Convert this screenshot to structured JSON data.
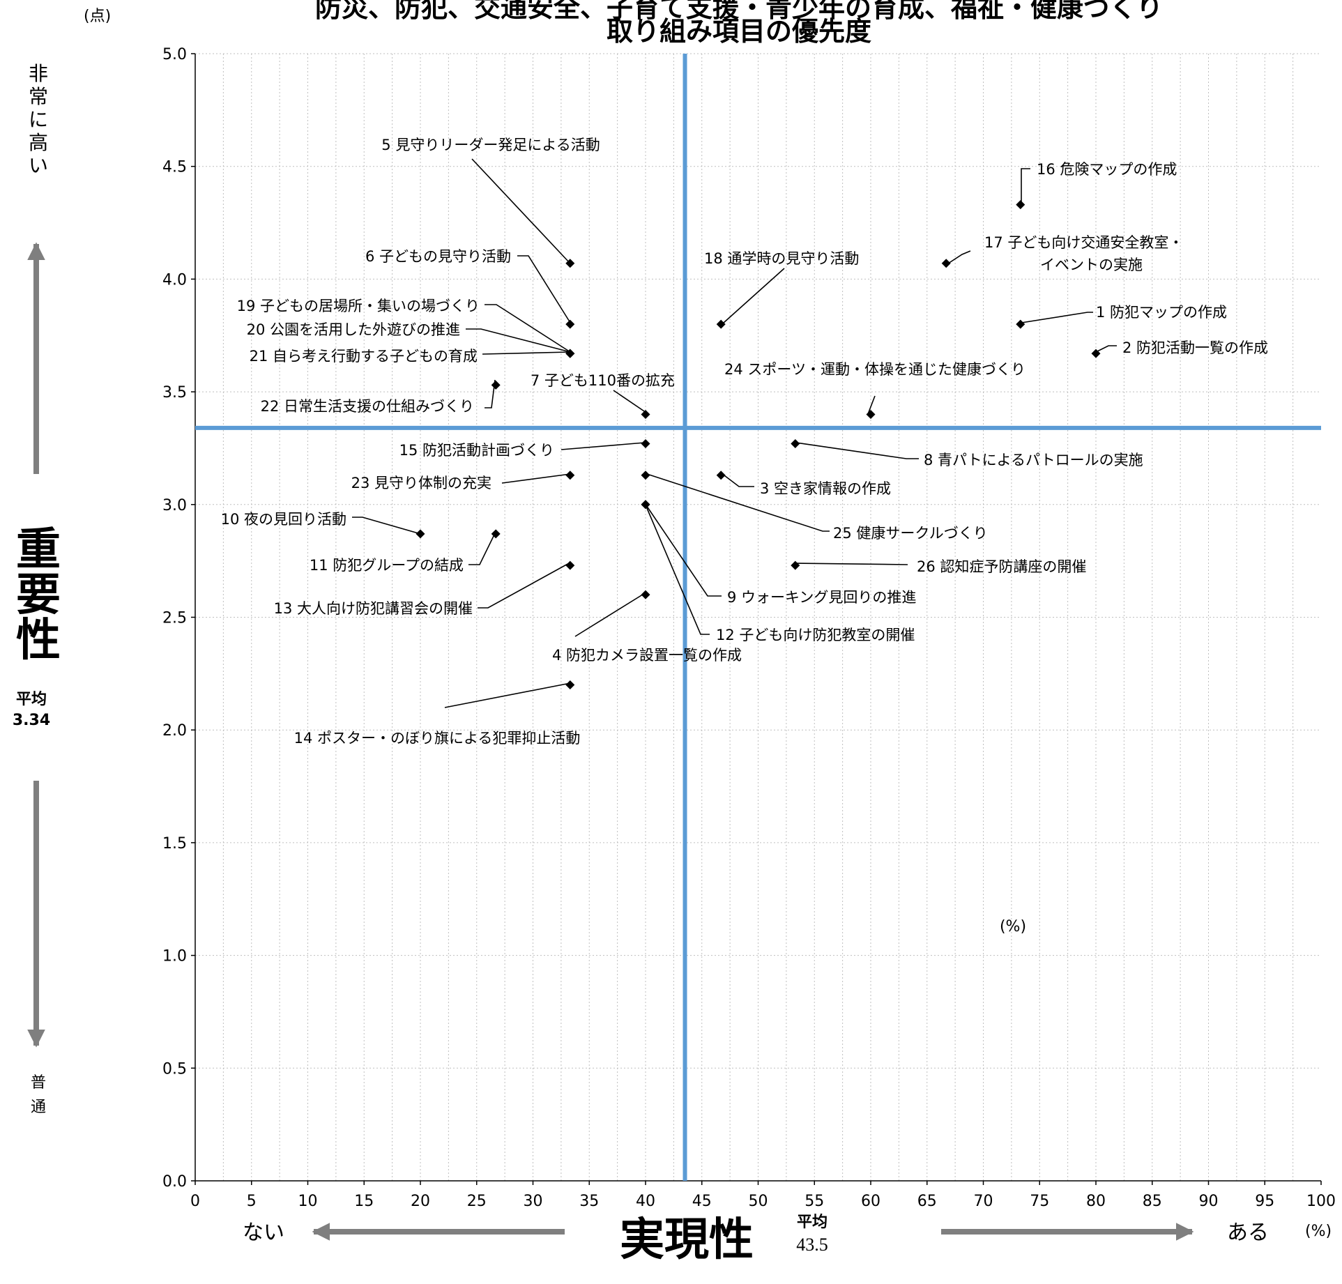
{
  "chart_data": {
    "type": "scatter",
    "title_lines": [
      "防災、防犯、交通安全、子育て支援・青少年の育成、福祉・健康づくり",
      "取り組み項目の優先度"
    ],
    "x_unit": "(%)",
    "y_unit": "(点)",
    "xlabel": "実現性",
    "ylabel": "重要性",
    "x_avg_label": "平均",
    "x_avg_value": "43.5",
    "y_avg_label": "平均",
    "y_avg_value": "3.34",
    "x_avg": 43.5,
    "y_avg": 3.34,
    "x_low": "ない",
    "x_high": "ある",
    "y_high": "非常に高い",
    "y_low": "普通",
    "plot_note": "(%)",
    "xlim": [
      0,
      100
    ],
    "ylim": [
      0,
      5
    ],
    "x_ticks": [
      "0",
      "5",
      "10",
      "15",
      "20",
      "25",
      "30",
      "35",
      "40",
      "45",
      "50",
      "55",
      "60",
      "65",
      "70",
      "75",
      "80",
      "85",
      "90",
      "95",
      "100"
    ],
    "y_ticks": [
      "0.0",
      "0.5",
      "1.0",
      "1.5",
      "2.0",
      "2.5",
      "3.0",
      "3.5",
      "4.0",
      "4.5",
      "5.0"
    ],
    "grid": true,
    "avg_line_color": "#5b9bd5",
    "points": [
      {
        "label": "1 防犯マップの作成",
        "x": 73.3,
        "y": 3.8
      },
      {
        "label": "2 防犯活動一覧の作成",
        "x": 80.0,
        "y": 3.67
      },
      {
        "label": "3 空き家情報の作成",
        "x": 46.7,
        "y": 3.13
      },
      {
        "label": "4 防犯カメラ設置一覧の作成",
        "x": 40.0,
        "y": 2.6
      },
      {
        "label": "5 見守りリーダー発足による活動",
        "x": 33.3,
        "y": 4.07
      },
      {
        "label": "6 子どもの見守り活動",
        "x": 33.3,
        "y": 3.8
      },
      {
        "label": "7 子ども110番の拡充",
        "x": 40.0,
        "y": 3.4
      },
      {
        "label": "8 青パトによるパトロールの実施",
        "x": 53.3,
        "y": 3.27
      },
      {
        "label": "9 ウォーキング見回りの推進",
        "x": 40.0,
        "y": 3.0
      },
      {
        "label": "10 夜の見回り活動",
        "x": 20.0,
        "y": 2.87
      },
      {
        "label": "11 防犯グループの結成",
        "x": 26.7,
        "y": 2.87
      },
      {
        "label": "12 子ども向け防犯教室の開催",
        "x": 40.0,
        "y": 3.0
      },
      {
        "label": "13 大人向け防犯講習会の開催",
        "x": 33.3,
        "y": 2.73
      },
      {
        "label": "14 ポスター・のぼり旗による犯罪抑止活動",
        "x": 33.3,
        "y": 2.2
      },
      {
        "label": "15 防犯活動計画づくり",
        "x": 40.0,
        "y": 3.27
      },
      {
        "label": "16 危険マップの作成",
        "x": 73.3,
        "y": 4.33
      },
      {
        "label": "17 子ども向け交通安全教室・イベントの実施",
        "x": 66.7,
        "y": 4.07
      },
      {
        "label": "18 通学時の見守り活動",
        "x": 46.7,
        "y": 3.8
      },
      {
        "label": "19 子どもの居場所・集いの場づくり",
        "x": 33.3,
        "y": 3.67
      },
      {
        "label": "20 公園を活用した外遊びの推進",
        "x": 33.3,
        "y": 3.67
      },
      {
        "label": "21 自ら考え行動する子どもの育成",
        "x": 26.7,
        "y": 3.53
      },
      {
        "label": "22 日常生活支援の仕組みづくり",
        "x": 33.3,
        "y": 3.67
      },
      {
        "label": "23 見守り体制の充実",
        "x": 33.3,
        "y": 3.13
      },
      {
        "label": "24 スポーツ・運動・体操を通じた健康づくり",
        "x": 60.0,
        "y": 3.4
      },
      {
        "label": "25 健康サークルづくり",
        "x": 40.0,
        "y": 3.13
      },
      {
        "label": "26 認知症予防講座の開催",
        "x": 53.3,
        "y": 2.73
      }
    ]
  }
}
